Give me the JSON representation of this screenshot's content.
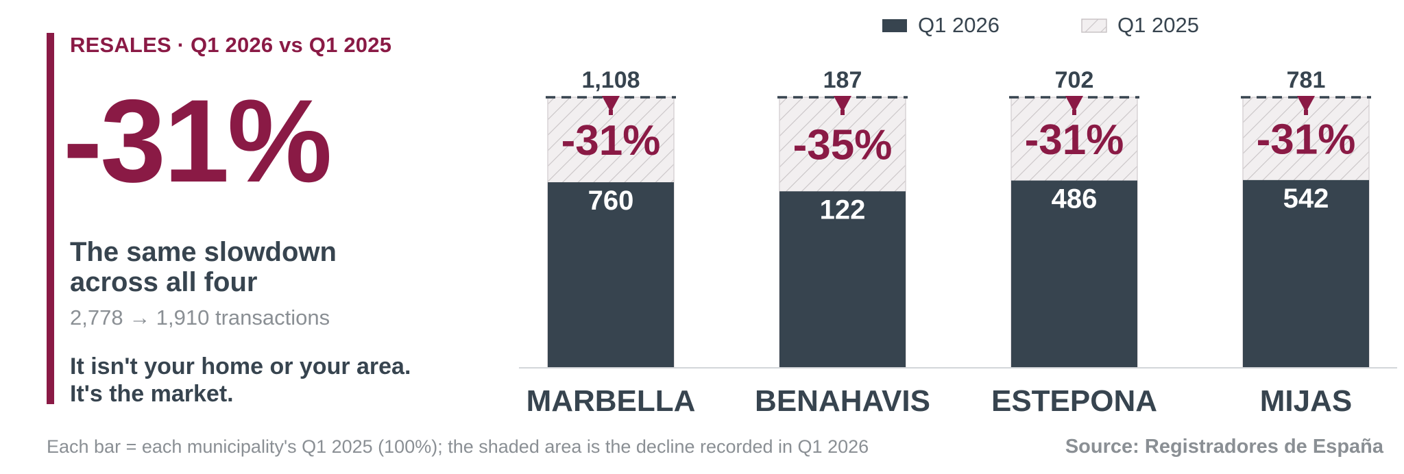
{
  "panel": {
    "eyebrow": "RESALES · Q1 2026 vs Q1 2025",
    "big_change": "-31%",
    "headline": "The same slowdown across all four",
    "subline": "2,778 → 1,910 transactions",
    "takeaway": "It isn't your home or your area. It's the market."
  },
  "footer": {
    "note": "Each bar = each municipality's Q1 2025 (100%); the shaded area is the decline recorded in Q1 2026",
    "source": "Source: Registradores de España"
  },
  "colors": {
    "accent": "#8a1a45",
    "dark": "#37444f",
    "hatch_bg": "#f2eff0",
    "hatch_line": "#c9c4c6",
    "muted": "#8a8f94"
  },
  "chart_data": {
    "type": "bar",
    "stacking": "overlaid-100-percent",
    "categories": [
      "MARBELLA",
      "BENAHAVIS",
      "ESTEPONA",
      "MIJAS"
    ],
    "series": [
      {
        "name": "Q1 2026",
        "values": [
          760,
          122,
          486,
          542
        ]
      },
      {
        "name": "Q1 2025",
        "values": [
          1108,
          187,
          702,
          781
        ]
      }
    ],
    "top_labels": [
      "1,108",
      "187",
      "702",
      "781"
    ],
    "value_labels": [
      "760",
      "122",
      "486",
      "542"
    ],
    "change_labels": [
      "-31%",
      "-35%",
      "-31%",
      "-31%"
    ],
    "legend": [
      "Q1 2026",
      "Q1 2025"
    ],
    "legend_position": "top-right",
    "grid": false
  }
}
